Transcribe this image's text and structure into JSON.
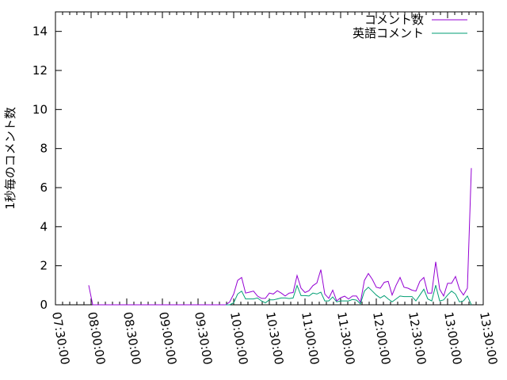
{
  "chart_data": {
    "type": "line",
    "title": "",
    "xlabel": "",
    "ylabel": "1秒毎のコメント数",
    "ylim": [
      0,
      15
    ],
    "yticks": [
      0,
      2,
      4,
      6,
      8,
      10,
      12,
      14
    ],
    "xlim": [
      "07:30:00",
      "13:30:00"
    ],
    "xticks": [
      "07:30:00",
      "08:00:00",
      "08:30:00",
      "09:00:00",
      "09:30:00",
      "10:00:00",
      "10:30:00",
      "11:00:00",
      "11:30:00",
      "12:00:00",
      "12:30:00",
      "13:00:00",
      "13:30:00"
    ],
    "grid": false,
    "legend_position": "top-right",
    "series": [
      {
        "name": "コメント数",
        "color": "#9400d3",
        "x": [
          "07:58:00",
          "08:01:20",
          "09:43:20",
          "09:46:40",
          "09:50:00",
          "09:53:20",
          "09:56:40",
          "10:00:00",
          "10:03:20",
          "10:06:40",
          "10:10:00",
          "10:13:20",
          "10:16:40",
          "10:20:00",
          "10:23:20",
          "10:26:40",
          "10:30:00",
          "10:33:20",
          "10:36:40",
          "10:40:00",
          "10:43:20",
          "10:46:40",
          "10:50:00",
          "10:53:20",
          "10:56:40",
          "11:00:00",
          "11:03:20",
          "11:06:40",
          "11:10:00",
          "11:13:20",
          "11:16:40",
          "11:20:00",
          "11:23:20",
          "11:26:40",
          "11:30:00",
          "11:33:20",
          "11:36:40",
          "11:40:00",
          "11:43:20",
          "11:46:40",
          "11:50:00",
          "11:53:20",
          "11:56:40",
          "12:00:00",
          "12:03:20",
          "12:06:40",
          "12:10:00",
          "12:13:20",
          "12:16:40",
          "12:20:00",
          "12:23:20",
          "12:26:40",
          "12:30:00",
          "12:33:20",
          "12:36:40",
          "12:40:00",
          "12:43:20",
          "12:46:40",
          "12:50:00",
          "12:53:20",
          "12:56:40",
          "13:00:00",
          "13:03:20",
          "13:06:40",
          "13:10:00",
          "13:13:20",
          "13:16:40",
          "13:20:00"
        ],
        "y": [
          1.0,
          0,
          0,
          0,
          0,
          0,
          0.15,
          0.55,
          1.25,
          1.4,
          0.6,
          0.65,
          0.7,
          0.45,
          0.33,
          0.33,
          0.6,
          0.55,
          0.72,
          0.6,
          0.45,
          0.6,
          0.63,
          1.5,
          0.85,
          0.63,
          0.72,
          0.98,
          1.12,
          1.8,
          0.55,
          0.33,
          0.75,
          0.2,
          0.36,
          0.44,
          0.3,
          0.45,
          0.45,
          0.13,
          1.25,
          1.6,
          1.3,
          0.9,
          0.85,
          1.15,
          1.2,
          0.5,
          1.0,
          1.4,
          0.9,
          0.85,
          0.75,
          0.7,
          1.2,
          1.4,
          0.6,
          0.6,
          2.2,
          0.8,
          0.45,
          1.1,
          1.1,
          1.45,
          0.8,
          0.5,
          0.85,
          7.0
        ]
      },
      {
        "name": "英語コメント",
        "color": "#009e73",
        "x": [
          "09:53:20",
          "09:56:40",
          "10:00:00",
          "10:03:20",
          "10:06:40",
          "10:10:00",
          "10:13:20",
          "10:16:40",
          "10:20:00",
          "10:23:20",
          "10:26:40",
          "10:30:00",
          "10:33:20",
          "10:36:40",
          "10:40:00",
          "10:43:20",
          "10:46:40",
          "10:50:00",
          "10:53:20",
          "10:56:40",
          "11:00:00",
          "11:03:20",
          "11:06:40",
          "11:10:00",
          "11:13:20",
          "11:16:40",
          "11:20:00",
          "11:23:20",
          "11:26:40",
          "11:30:00",
          "11:33:20",
          "11:36:40",
          "11:40:00",
          "11:43:20",
          "11:46:40",
          "11:50:00",
          "11:53:20",
          "11:56:40",
          "12:00:00",
          "12:03:20",
          "12:06:40",
          "12:10:00",
          "12:13:20",
          "12:16:40",
          "12:20:00",
          "12:23:20",
          "12:26:40",
          "12:30:00",
          "12:33:20",
          "12:36:40",
          "12:40:00",
          "12:43:20",
          "12:46:40",
          "12:50:00",
          "12:53:20",
          "12:56:40",
          "13:00:00",
          "13:03:20",
          "13:06:40",
          "13:10:00",
          "13:13:20",
          "13:16:40",
          "13:20:00"
        ],
        "y": [
          0,
          0,
          0.1,
          0.55,
          0.7,
          0.3,
          0.3,
          0.3,
          0.35,
          0.2,
          0.1,
          0.25,
          0.25,
          0.3,
          0.35,
          0.35,
          0.32,
          0.35,
          0.99,
          0.47,
          0.47,
          0.45,
          0.6,
          0.55,
          0.65,
          0.2,
          0.2,
          0.4,
          0.15,
          0.2,
          0.2,
          0.2,
          0.27,
          0.24,
          0.05,
          0.7,
          0.9,
          0.7,
          0.5,
          0.35,
          0.47,
          0.3,
          0.15,
          0.3,
          0.45,
          0.42,
          0.42,
          0.42,
          0.2,
          0.5,
          0.8,
          0.3,
          0.2,
          1.0,
          0.2,
          0.25,
          0.5,
          0.7,
          0.55,
          0.15,
          0.2,
          0.45,
          0
        ]
      }
    ]
  }
}
